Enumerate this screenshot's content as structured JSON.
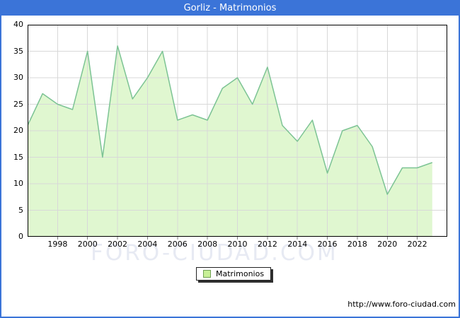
{
  "window": {
    "title": "Gorliz - Matrimonios"
  },
  "chart_data": {
    "type": "area",
    "title": "Gorliz - Matrimonios",
    "series_name": "Matrimonios",
    "x": [
      1996,
      1997,
      1998,
      1999,
      2000,
      2001,
      2002,
      2003,
      2004,
      2005,
      2006,
      2007,
      2008,
      2009,
      2010,
      2011,
      2012,
      2013,
      2014,
      2015,
      2016,
      2017,
      2018,
      2019,
      2020,
      2021,
      2022,
      2023
    ],
    "values": [
      21,
      27,
      25,
      24,
      35,
      15,
      36,
      26,
      30,
      35,
      22,
      23,
      22,
      28,
      30,
      25,
      32,
      21,
      18,
      22,
      12,
      20,
      21,
      17,
      8,
      13,
      13,
      14
    ],
    "xlabel": "",
    "ylabel": "",
    "xlim": [
      1996,
      2024
    ],
    "ylim": [
      0,
      40
    ],
    "x_ticks": [
      1998,
      2000,
      2002,
      2004,
      2006,
      2008,
      2010,
      2012,
      2014,
      2016,
      2018,
      2020,
      2022
    ],
    "y_ticks": [
      0,
      5,
      10,
      15,
      20,
      25,
      30,
      35,
      40
    ],
    "grid": true,
    "legend_position": "bottom-center"
  },
  "legend": {
    "label": "Matrimonios"
  },
  "watermark": {
    "text": "FORO-CIUDAD.COM"
  },
  "footer": {
    "url": "http://www.foro-ciudad.com"
  },
  "colors": {
    "titlebar_bg": "#3b74d8",
    "frame_border": "#3b74d8",
    "titlebar_text": "#ffffff",
    "line": "#7cc394",
    "fill": "#e0f7d0",
    "grid": "#d8d8d8",
    "plot_border": "#000000",
    "legend_swatch_fill": "#c8f098",
    "legend_swatch_border": "#70a055",
    "watermark": "#e7eaf3",
    "text": "#000000"
  }
}
